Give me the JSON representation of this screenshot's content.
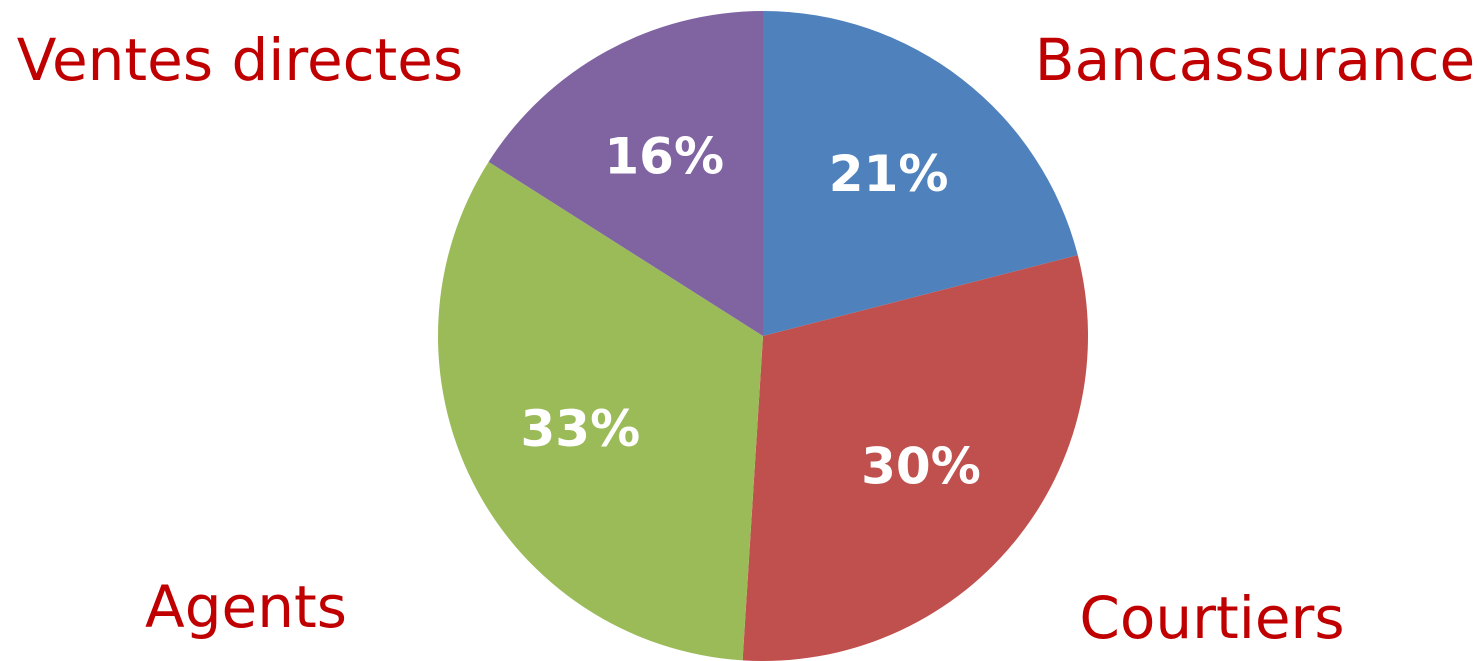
{
  "chart_data": {
    "type": "pie",
    "categories": [
      "Bancassurance",
      "Courtiers",
      "Agents",
      "Ventes directes"
    ],
    "values": [
      21,
      30,
      33,
      16
    ],
    "value_labels": [
      "21%",
      "30%",
      "33%",
      "16%"
    ],
    "unit": "%",
    "colors": [
      "#4F81BD",
      "#C0504D",
      "#9BBB59",
      "#8064A2"
    ],
    "label_color": "#C00000",
    "value_label_color": "#FFFFFF",
    "start_angle": "top",
    "direction": "clockwise",
    "legend": "none"
  }
}
